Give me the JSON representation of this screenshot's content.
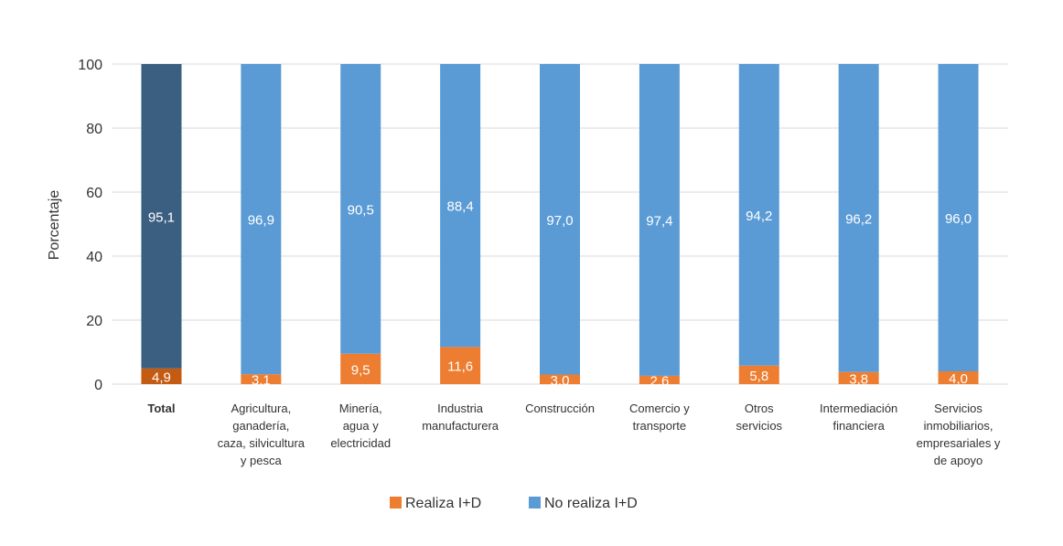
{
  "chart_data": {
    "type": "bar",
    "stacked": true,
    "ylabel": "Porcentaje",
    "ylim": [
      0,
      100
    ],
    "yticks": [
      0,
      20,
      40,
      60,
      80,
      100
    ],
    "grid": true,
    "legend_position": "bottom",
    "categories": [
      [
        "Total"
      ],
      [
        "Agricultura,",
        "ganadería,",
        "caza, silvicultura",
        "y pesca"
      ],
      [
        "Minería,",
        "agua y",
        "electricidad"
      ],
      [
        "Industria",
        "manufacturera"
      ],
      [
        "Construcción"
      ],
      [
        "Comercio y",
        "transporte"
      ],
      [
        "Otros",
        "servicios"
      ],
      [
        "Intermediación",
        "financiera"
      ],
      [
        "Servicios",
        "inmobiliarios,",
        "empresariales y",
        "de apoyo"
      ]
    ],
    "value_labels": {
      "Realiza I+D": [
        "4,9",
        "3,1",
        "9,5",
        "11,6",
        "3,0",
        "2,6",
        "5,8",
        "3,8",
        "4,0"
      ],
      "No realiza I+D": [
        "95,1",
        "96,9",
        "90,5",
        "88,4",
        "97,0",
        "97,4",
        "94,2",
        "96,2",
        "96,0"
      ]
    },
    "series": [
      {
        "name": "Realiza I+D",
        "color": "#ed7d31",
        "highlight_color": "#c55a11",
        "values": [
          4.9,
          3.1,
          9.5,
          11.6,
          3.0,
          2.6,
          5.8,
          3.8,
          4.0
        ]
      },
      {
        "name": "No realiza I+D",
        "color": "#5b9bd5",
        "highlight_color": "#3b5f80",
        "values": [
          95.1,
          96.9,
          90.5,
          88.4,
          97.0,
          97.4,
          94.2,
          96.2,
          96.0
        ]
      }
    ],
    "highlight_category_index": 0
  }
}
